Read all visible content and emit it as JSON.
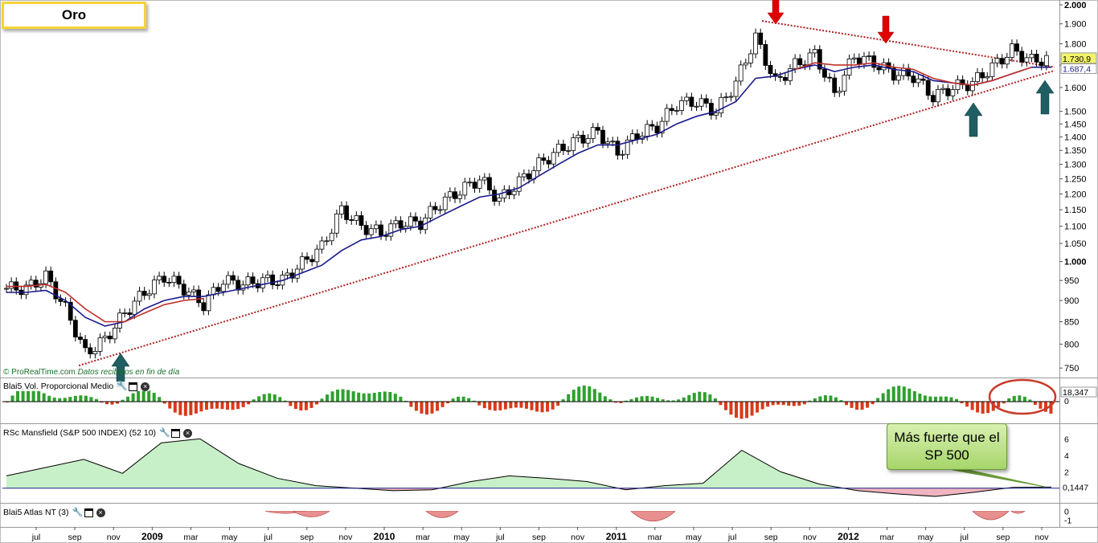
{
  "title": "Oro",
  "watermark": {
    "brand": "© ProRealTime.com",
    "note": "Datos recibidos en fin de día"
  },
  "panels": {
    "volume_label": "Blai5 Vol. Proporcional Medio",
    "rsc_label": "RSc Mansfield (S&P 500 INDEX) (52 10)",
    "atlas_label": "Blai5 Atlas NT (3)"
  },
  "callout": "Más fuerte que el SP 500",
  "colors": {
    "up_candle": "#ffffff",
    "down_candle": "#000000",
    "ma_blue": "#1a1a8c",
    "ma_red": "#c0302a",
    "trendline": "#b02020",
    "vol_up": "#2ea02e",
    "vol_down": "#d83a1a",
    "rsc_fill": "#c8f0c8",
    "rsc_neg_fill": "#f0b4c0",
    "atlas_fill": "#e8908f",
    "arrow_red": "#e00000",
    "arrow_teal": "#1f5e63"
  },
  "icons": [
    "wrench-icon",
    "window-icon",
    "close-icon"
  ],
  "chart_data": [
    {
      "type": "candlestick",
      "title": "Oro",
      "ylim": [
        700,
        2000
      ],
      "y_ticks": [
        "750",
        "800",
        "850",
        "900",
        "950",
        "1.000",
        "1.050",
        "1.100",
        "1.150",
        "1.200",
        "1.250",
        "1.300",
        "1.350",
        "1.400",
        "1.450",
        "1.500",
        "1.600",
        "1.700",
        "1.800",
        "1.900",
        "2.000"
      ],
      "y_scale": "log",
      "x_labels": [
        "jul",
        "sep",
        "nov",
        "2009",
        "mar",
        "may",
        "jul",
        "sep",
        "nov",
        "2010",
        "mar",
        "may",
        "jul",
        "sep",
        "nov",
        "2011",
        "mar",
        "may",
        "jul",
        "sep",
        "nov",
        "2012",
        "mar",
        "may",
        "jul",
        "sep",
        "nov"
      ],
      "x": [
        "2008-06",
        "2008-07",
        "2008-08",
        "2008-09",
        "2008-10",
        "2008-11",
        "2008-12",
        "2009-01",
        "2009-02",
        "2009-03",
        "2009-04",
        "2009-05",
        "2009-06",
        "2009-07",
        "2009-08",
        "2009-09",
        "2009-10",
        "2009-11",
        "2009-12",
        "2010-01",
        "2010-02",
        "2010-03",
        "2010-04",
        "2010-05",
        "2010-06",
        "2010-07",
        "2010-08",
        "2010-09",
        "2010-10",
        "2010-11",
        "2010-12",
        "2011-01",
        "2011-02",
        "2011-03",
        "2011-04",
        "2011-05",
        "2011-06",
        "2011-07",
        "2011-08",
        "2011-09",
        "2011-10",
        "2011-11",
        "2011-12",
        "2012-01",
        "2012-02",
        "2012-03",
        "2012-04",
        "2012-05",
        "2012-06",
        "2012-07",
        "2012-08",
        "2012-09",
        "2012-10",
        "2012-11"
      ],
      "close": [
        930,
        930,
        960,
        880,
        780,
        810,
        870,
        920,
        960,
        930,
        890,
        950,
        940,
        950,
        950,
        995,
        1040,
        1150,
        1100,
        1080,
        1110,
        1110,
        1170,
        1210,
        1250,
        1180,
        1240,
        1300,
        1350,
        1390,
        1420,
        1340,
        1410,
        1440,
        1530,
        1540,
        1500,
        1620,
        1830,
        1620,
        1700,
        1750,
        1570,
        1740,
        1710,
        1660,
        1650,
        1560,
        1600,
        1620,
        1690,
        1770,
        1720,
        1730
      ],
      "series": [
        {
          "name": "",
          "values": [
            920,
            920,
            925,
            900,
            860,
            840,
            850,
            880,
            900,
            910,
            910,
            920,
            930,
            940,
            950,
            970,
            990,
            1030,
            1060,
            1070,
            1090,
            1100,
            1130,
            1160,
            1190,
            1200,
            1220,
            1260,
            1300,
            1340,
            1370,
            1370,
            1390,
            1410,
            1450,
            1480,
            1500,
            1540,
            1640,
            1650,
            1680,
            1700,
            1670,
            1690,
            1700,
            1680,
            1670,
            1630,
            1620,
            1610,
            1630,
            1660,
            1690,
            1690
          ]
        },
        {
          "name": "",
          "values": [
            935,
            935,
            940,
            920,
            880,
            850,
            850,
            870,
            890,
            900,
            905,
            920,
            930,
            940,
            950,
            970,
            990,
            1030,
            1060,
            1070,
            1090,
            1100,
            1130,
            1160,
            1190,
            1200,
            1220,
            1260,
            1300,
            1340,
            1370,
            1370,
            1390,
            1410,
            1450,
            1480,
            1500,
            1540,
            1640,
            1650,
            1680,
            1710,
            1700,
            1700,
            1710,
            1690,
            1680,
            1640,
            1620,
            1610,
            1630,
            1660,
            1690,
            1690
          ]
        }
      ],
      "price_labels": [
        "1.730,9",
        "1.687,4"
      ]
    },
    {
      "type": "bar",
      "title": "Blai5 Vol. Proporcional Medio",
      "ylim": [
        -1,
        1
      ],
      "y_ticks": [
        "0"
      ],
      "last_value": "18,347"
    },
    {
      "type": "area",
      "title": "RSc Mansfield (S&P 500 INDEX) (52 10)",
      "ylim": [
        -1,
        7
      ],
      "y_ticks": [
        "6",
        "4",
        "2",
        "0,1447"
      ],
      "x": [
        "2008-06",
        "2008-08",
        "2008-10",
        "2008-12",
        "2009-02",
        "2009-04",
        "2009-06",
        "2009-08",
        "2009-10",
        "2009-12",
        "2010-02",
        "2010-04",
        "2010-06",
        "2010-08",
        "2010-10",
        "2010-12",
        "2011-02",
        "2011-04",
        "2011-06",
        "2011-08",
        "2011-10",
        "2011-12",
        "2012-02",
        "2012-04",
        "2012-06",
        "2012-08",
        "2012-10",
        "2012-11"
      ],
      "values": [
        1.5,
        2.5,
        3.5,
        1.8,
        5.5,
        6.0,
        3.0,
        1.2,
        0.3,
        0.0,
        -0.3,
        -0.2,
        0.8,
        1.5,
        1.2,
        0.8,
        -0.2,
        0.3,
        0.6,
        4.6,
        2.0,
        0.5,
        -0.3,
        -0.7,
        -1.0,
        -0.5,
        0.1,
        0.14
      ]
    },
    {
      "type": "area",
      "title": "Blai5 Atlas NT (3)",
      "ylim": [
        -1.5,
        0.5
      ],
      "y_ticks": [
        "0",
        "-1"
      ]
    }
  ]
}
